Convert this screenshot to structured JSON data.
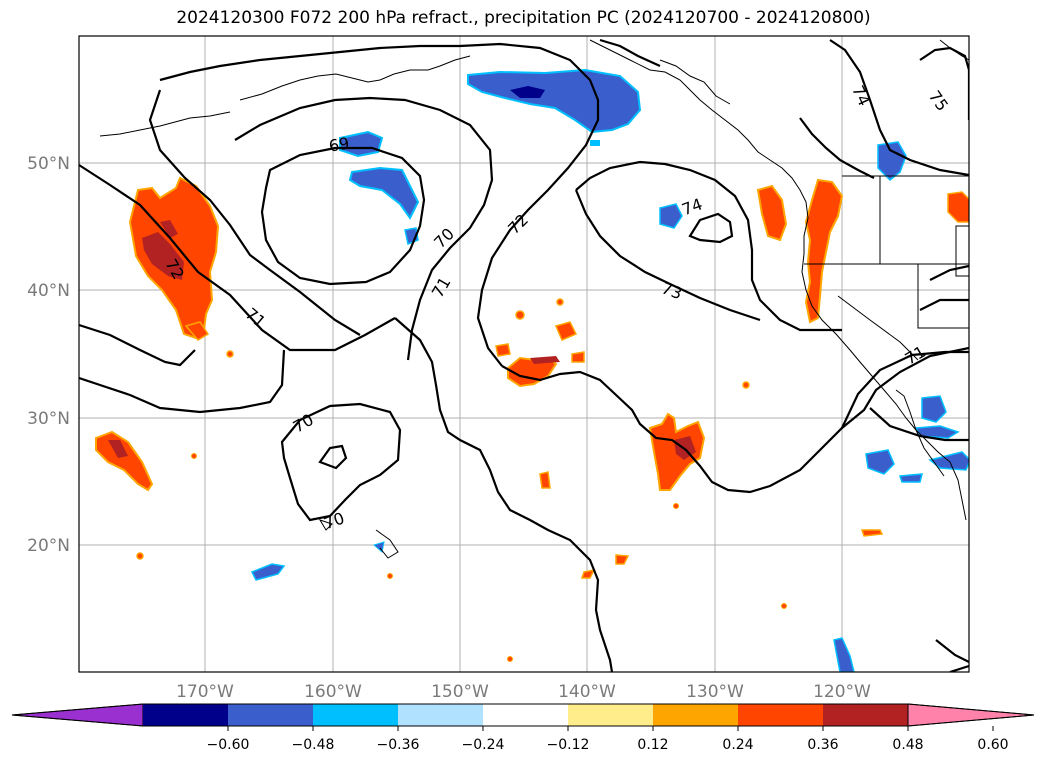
{
  "title": "2024120300 F072 200 hPa refract., precipitation PC (2024120700 - 2024120800)",
  "lon_labels": [
    "170°W",
    "160°W",
    "150°W",
    "140°W",
    "130°W",
    "120°W"
  ],
  "lat_labels": [
    "50°N",
    "40°N",
    "30°N",
    "20°N"
  ],
  "colorbar": {
    "colors": [
      "#9b30d0",
      "#00008b",
      "#3a5fcd",
      "#00bfff",
      "#b0e2ff",
      "#ffffff",
      "#ffec8b",
      "#ffa500",
      "#ff4500",
      "#b22222",
      "#ff82ab"
    ],
    "ticks": [
      "−0.60",
      "−0.48",
      "−0.36",
      "−0.24",
      "−0.12",
      "0.12",
      "0.24",
      "0.36",
      "0.48",
      "0.60"
    ]
  },
  "contour_labels": [
    "69",
    "70",
    "70",
    "70",
    "71",
    "71",
    "71",
    "72",
    "72",
    "73",
    "74",
    "74",
    "75"
  ]
}
